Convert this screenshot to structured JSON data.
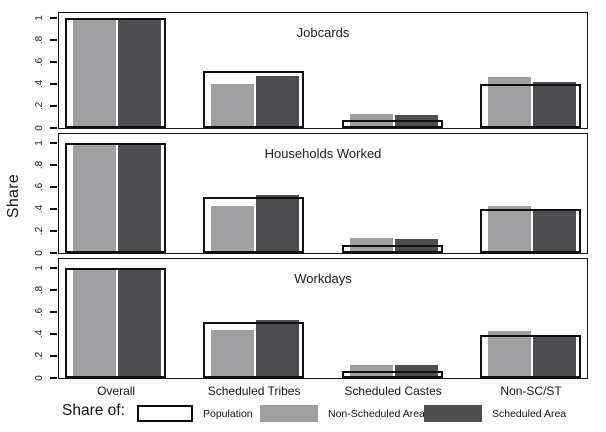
{
  "figure": {
    "ylabel": "Share",
    "background": "#ffffff",
    "frame_color": "#141414"
  },
  "legend": {
    "prefix": "Share of:",
    "items": [
      {
        "label": "Population",
        "color": "#ffffff",
        "outlined": true
      },
      {
        "label": "Non-Scheduled Area",
        "color": "#a0a0a3",
        "outlined": false
      },
      {
        "label": "Scheduled Area",
        "color": "#4e4e52",
        "outlined": false
      }
    ]
  },
  "chart_data": [
    {
      "type": "bar",
      "title": "Jobcards",
      "categories": [
        "Overall",
        "Scheduled Tribes",
        "Scheduled Castes",
        "Non-SC/ST"
      ],
      "series": [
        {
          "name": "Population",
          "style": "outline",
          "color": "#ffffff",
          "values": [
            1.0,
            0.52,
            0.07,
            0.4
          ]
        },
        {
          "name": "Non-Scheduled Area",
          "style": "fill",
          "color": "#a0a0a3",
          "values": [
            0.99,
            0.4,
            0.13,
            0.46
          ]
        },
        {
          "name": "Scheduled Area",
          "style": "fill",
          "color": "#4e4e52",
          "values": [
            1.0,
            0.47,
            0.12,
            0.42
          ]
        }
      ],
      "ylabel": "Share",
      "ylim": [
        0,
        1
      ],
      "yticks": [
        0,
        0.2,
        0.4,
        0.6,
        0.8,
        1
      ],
      "ytick_labels": [
        "0",
        ".2",
        ".4",
        ".6",
        ".8",
        "1"
      ],
      "grid": false,
      "legend_position": "bottom"
    },
    {
      "type": "bar",
      "title": "Households Worked",
      "categories": [
        "Overall",
        "Scheduled Tribes",
        "Scheduled Castes",
        "Non-SC/ST"
      ],
      "series": [
        {
          "name": "Population",
          "style": "outline",
          "color": "#ffffff",
          "values": [
            1.0,
            0.51,
            0.07,
            0.4
          ]
        },
        {
          "name": "Non-Scheduled Area",
          "style": "fill",
          "color": "#a0a0a3",
          "values": [
            0.99,
            0.43,
            0.14,
            0.43
          ]
        },
        {
          "name": "Scheduled Area",
          "style": "fill",
          "color": "#4e4e52",
          "values": [
            1.0,
            0.53,
            0.13,
            0.4
          ]
        }
      ],
      "ylabel": "Share",
      "ylim": [
        0,
        1
      ],
      "yticks": [
        0,
        0.2,
        0.4,
        0.6,
        0.8,
        1
      ],
      "ytick_labels": [
        "0",
        ".2",
        ".4",
        ".6",
        ".8",
        "1"
      ],
      "grid": false,
      "legend_position": "bottom"
    },
    {
      "type": "bar",
      "title": "Workdays",
      "categories": [
        "Overall",
        "Scheduled Tribes",
        "Scheduled Castes",
        "Non-SC/ST"
      ],
      "series": [
        {
          "name": "Population",
          "style": "outline",
          "color": "#ffffff",
          "values": [
            1.0,
            0.51,
            0.06,
            0.39
          ]
        },
        {
          "name": "Non-Scheduled Area",
          "style": "fill",
          "color": "#a0a0a3",
          "values": [
            0.99,
            0.44,
            0.12,
            0.43
          ]
        },
        {
          "name": "Scheduled Area",
          "style": "fill",
          "color": "#4e4e52",
          "values": [
            1.0,
            0.53,
            0.12,
            0.37
          ]
        }
      ],
      "ylabel": "Share",
      "ylim": [
        0,
        1
      ],
      "yticks": [
        0,
        0.2,
        0.4,
        0.6,
        0.8,
        1
      ],
      "ytick_labels": [
        "0",
        ".2",
        ".4",
        ".6",
        ".8",
        "1"
      ],
      "grid": false,
      "legend_position": "bottom"
    }
  ]
}
